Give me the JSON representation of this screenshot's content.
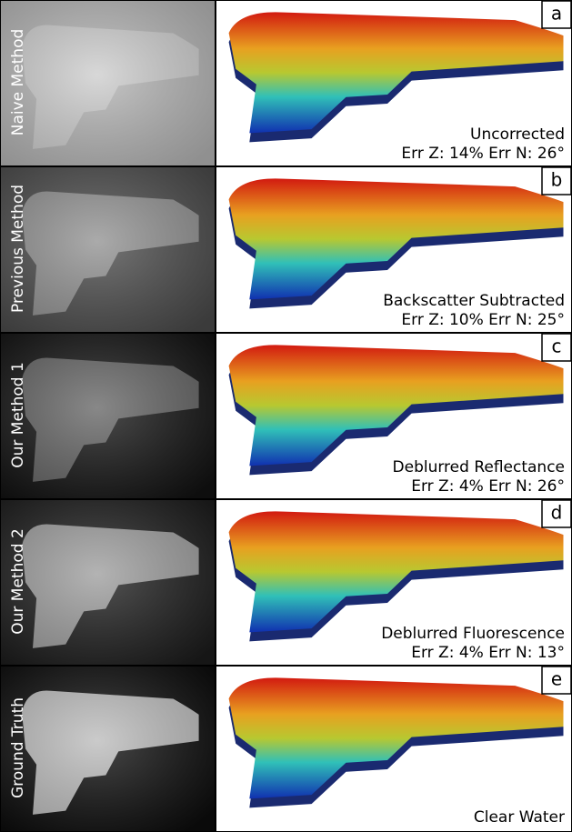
{
  "rows": [
    {
      "side_label": "Naive Method",
      "letter": "a",
      "caption": "Uncorrected",
      "error": "Err Z: 14% Err N: 26°"
    },
    {
      "side_label": "Previous Method",
      "letter": "b",
      "caption": "Backscatter Subtracted",
      "error": "Err Z: 10% Err N: 25°"
    },
    {
      "side_label": "Our Method 1",
      "letter": "c",
      "caption": "Deblurred Reflectance",
      "error": "Err Z: 4% Err N: 26°"
    },
    {
      "side_label": "Our Method 2",
      "letter": "d",
      "caption": "Deblurred Fluorescence",
      "error": "Err Z: 4% Err N: 13°"
    },
    {
      "side_label": "Ground Truth",
      "letter": "e",
      "caption": "Clear Water"
    }
  ]
}
